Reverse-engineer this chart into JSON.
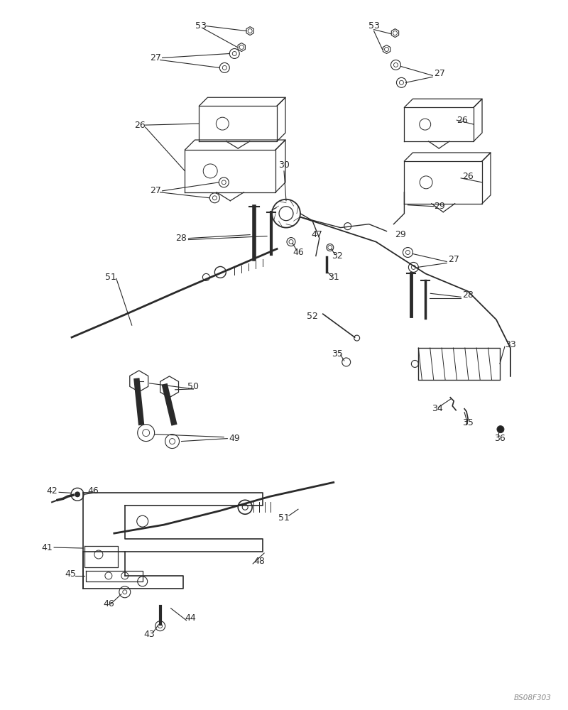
{
  "bg_color": "#ffffff",
  "lc": "#2a2a2a",
  "watermark": "BS08F303",
  "fig_w": 8.0,
  "fig_h": 10.0,
  "dpi": 100
}
